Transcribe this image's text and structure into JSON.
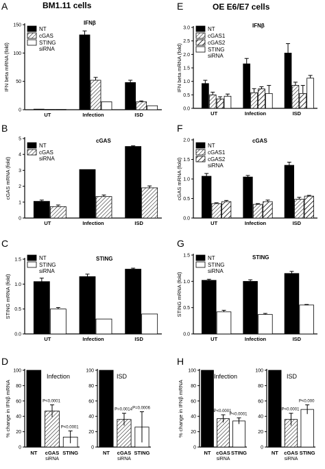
{
  "headers": [
    {
      "id": "left",
      "text": "BM1.11 cells"
    },
    {
      "id": "right",
      "text": "OE E6/E7 cells"
    }
  ],
  "panel_letters": [
    "A",
    "B",
    "C",
    "D",
    "E",
    "F",
    "G",
    "H"
  ],
  "colors": {
    "nt": "#000000",
    "bar_outline": "#000000",
    "white": "#ffffff",
    "hatch": "#000000"
  },
  "chart_data": [
    {
      "panel": "A",
      "type": "bar",
      "title": "IFNβ",
      "ylabel": "IFN beta mRNA (fold)",
      "ylim": [
        0,
        150
      ],
      "yticks": [
        0,
        50,
        100,
        150
      ],
      "categories": [
        "UT",
        "Infection",
        "ISD"
      ],
      "legend_position": "top-left",
      "series": [
        {
          "name": "NT",
          "style": "black",
          "values": [
            1,
            132,
            48
          ],
          "errors": [
            0,
            7,
            4
          ]
        },
        {
          "name": "cGAS",
          "style": "hatch",
          "values": [
            0.5,
            52,
            14
          ],
          "errors": [
            0,
            5,
            1.5
          ]
        },
        {
          "name": "STING siRNA",
          "legend_lines": [
            "STING",
            "siRNA"
          ],
          "style": "white",
          "values": [
            0.5,
            14,
            7
          ],
          "errors": [
            0,
            0,
            0
          ]
        }
      ]
    },
    {
      "panel": "B",
      "type": "bar",
      "title": "cGAS",
      "ylabel": "cGAS mRNA (fold)",
      "ylim": [
        0,
        5
      ],
      "yticks": [
        0,
        1,
        2,
        3,
        4,
        5
      ],
      "categories": [
        "UT",
        "Infection",
        "ISD"
      ],
      "legend_position": "top-left",
      "series": [
        {
          "name": "NT",
          "style": "black",
          "values": [
            1.05,
            3.05,
            4.5
          ],
          "errors": [
            0.08,
            0,
            0.04
          ]
        },
        {
          "name": "cGAS siRNA",
          "legend_lines": [
            "cGAS",
            "siRNA"
          ],
          "style": "hatch",
          "values": [
            0.72,
            1.35,
            1.9
          ],
          "errors": [
            0.1,
            0.1,
            0.12
          ]
        }
      ]
    },
    {
      "panel": "C",
      "type": "bar",
      "title": "STING",
      "ylabel": "STING mRNA (fold)",
      "ylim": [
        0,
        1.5
      ],
      "yticks": [
        0,
        0.5,
        1.0,
        1.5
      ],
      "categories": [
        "UT",
        "Infection",
        "ISD"
      ],
      "legend_position": "top-left",
      "series": [
        {
          "name": "NT",
          "style": "black",
          "values": [
            1.05,
            1.15,
            1.3
          ],
          "errors": [
            0.07,
            0.05,
            0.02
          ]
        },
        {
          "name": "STING siRNA",
          "legend_lines": [
            "STING",
            "siRNA"
          ],
          "style": "white",
          "values": [
            0.5,
            0.3,
            0.4
          ],
          "errors": [
            0.03,
            0,
            0
          ]
        }
      ]
    },
    {
      "panel": "D-infection",
      "type": "bar",
      "inline_label": "Infection",
      "ylabel": "% change in IFNβ mRNA",
      "ylim": [
        0,
        100
      ],
      "yticks": [
        0,
        20,
        40,
        60,
        80,
        100
      ],
      "categories": [
        "NT",
        "cGAS",
        "STING"
      ],
      "sublabels": [
        "",
        "siRNA",
        ""
      ],
      "styles": [
        "black",
        "hatch",
        "white"
      ],
      "values": [
        100,
        47,
        13
      ],
      "errors": [
        0,
        8,
        8
      ],
      "annotations": [
        "",
        "P<0.0001",
        "P<0.0001"
      ]
    },
    {
      "panel": "D-isd",
      "type": "bar",
      "inline_label": "ISD",
      "ylim": [
        0,
        100
      ],
      "yticks": [
        0,
        20,
        40,
        60,
        80,
        100
      ],
      "categories": [
        "NT",
        "cGAS",
        "STING"
      ],
      "sublabels": [
        "",
        "siRNA",
        ""
      ],
      "styles": [
        "black",
        "hatch",
        "white"
      ],
      "values": [
        100,
        36,
        26
      ],
      "errors": [
        0,
        8,
        20
      ],
      "annotations": [
        "",
        "P=0.0014",
        "P=0.0006"
      ]
    },
    {
      "panel": "E",
      "type": "bar",
      "title": "IFNβ",
      "ylabel": "IFN beta mRNA (fold)",
      "ylim": [
        0,
        3.0
      ],
      "yticks": [
        0,
        0.5,
        1.0,
        1.5,
        2.0,
        2.5,
        3.0
      ],
      "categories": [
        "UT",
        "Infection",
        "ISD"
      ],
      "legend_position": "top-left",
      "series": [
        {
          "name": "NT",
          "style": "black",
          "values": [
            0.92,
            1.65,
            2.05
          ],
          "errors": [
            0.12,
            0.2,
            0.35
          ]
        },
        {
          "name": "cGAS1",
          "style": "hatch",
          "values": [
            0.5,
            0.58,
            0.85
          ],
          "errors": [
            0.1,
            0.15,
            0.12
          ]
        },
        {
          "name": "cGAS2",
          "style": "hatch2",
          "values": [
            0.35,
            0.72,
            0.55
          ],
          "errors": [
            0.08,
            0.08,
            0.3
          ]
        },
        {
          "name": "STING siRNA",
          "legend_lines": [
            "STING",
            "siRNA"
          ],
          "style": "white",
          "values": [
            0.45,
            0.55,
            1.12
          ],
          "errors": [
            0.08,
            0.3,
            0.1
          ]
        }
      ]
    },
    {
      "panel": "F",
      "type": "bar",
      "title": "cGAS",
      "ylabel": "cGAS mRNA (fold)",
      "ylim": [
        0,
        2.0
      ],
      "yticks": [
        0,
        0.5,
        1.0,
        1.5,
        2.0
      ],
      "categories": [
        "UT",
        "Infection",
        "ISD"
      ],
      "legend_position": "top-left",
      "series": [
        {
          "name": "NT",
          "style": "black",
          "values": [
            1.07,
            1.05,
            1.35
          ],
          "errors": [
            0.07,
            0.04,
            0.08
          ]
        },
        {
          "name": "cGAS1",
          "style": "hatch",
          "values": [
            0.37,
            0.35,
            0.48
          ],
          "errors": [
            0.02,
            0.02,
            0.05
          ]
        },
        {
          "name": "cGAS2 siRNA",
          "legend_lines": [
            "cGAS2",
            "siRNA"
          ],
          "style": "hatch2",
          "values": [
            0.42,
            0.42,
            0.56
          ],
          "errors": [
            0.03,
            0.04,
            0.02
          ]
        }
      ]
    },
    {
      "panel": "G",
      "type": "bar",
      "title": "STING",
      "ylabel": "STING mRNA (fold)",
      "ylim": [
        0,
        1.5
      ],
      "yticks": [
        0,
        0.5,
        1.0,
        1.5
      ],
      "categories": [
        "UT",
        "Infection",
        "ISD"
      ],
      "legend_position": "top-left",
      "series": [
        {
          "name": "NT",
          "style": "black",
          "values": [
            1.02,
            1.0,
            1.15
          ],
          "errors": [
            0.02,
            0.03,
            0.04
          ]
        },
        {
          "name": "STING siRNA",
          "legend_lines": [
            "STING",
            "siRNA"
          ],
          "style": "white",
          "values": [
            0.42,
            0.37,
            0.55
          ],
          "errors": [
            0.03,
            0.02,
            0.01
          ]
        }
      ]
    },
    {
      "panel": "H-infection",
      "type": "bar",
      "inline_label": "Infection",
      "ylabel": "% change in IFNβ mRNA",
      "ylim": [
        0,
        100
      ],
      "yticks": [
        0,
        20,
        40,
        60,
        80,
        100
      ],
      "categories": [
        "NT",
        "cGAS",
        "STING"
      ],
      "sublabels": [
        "",
        "siRNA",
        ""
      ],
      "styles": [
        "black",
        "hatch",
        "white"
      ],
      "values": [
        100,
        37,
        34
      ],
      "errors": [
        0,
        5,
        4
      ],
      "annotations": [
        "",
        "P<0.0001",
        "P<0.0001"
      ]
    },
    {
      "panel": "H-isd",
      "type": "bar",
      "inline_label": "ISD",
      "ylim": [
        0,
        100
      ],
      "yticks": [
        0,
        20,
        40,
        60,
        80,
        100
      ],
      "categories": [
        "NT",
        "cGAS",
        "STING"
      ],
      "sublabels": [
        "",
        "siRNA",
        ""
      ],
      "styles": [
        "black",
        "hatch",
        "white"
      ],
      "values": [
        100,
        36,
        49
      ],
      "errors": [
        0,
        8,
        6
      ],
      "annotations": [
        "",
        "P<0.0001",
        "P<0.000"
      ]
    }
  ]
}
